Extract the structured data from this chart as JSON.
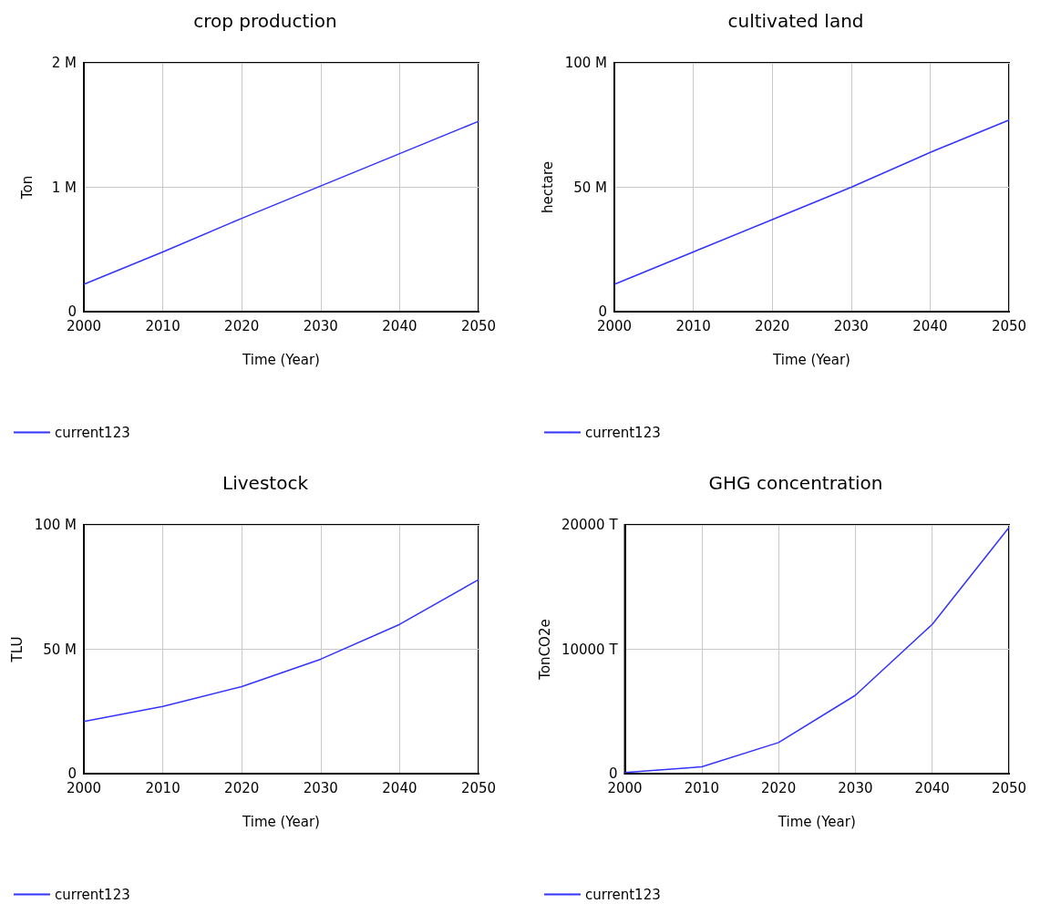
{
  "chart_data": [
    {
      "type": "line",
      "title": "crop production",
      "xlabel": "Time (Year)",
      "ylabel": "Ton",
      "x": [
        2000,
        2010,
        2020,
        2030,
        2040,
        2050
      ],
      "xlim": [
        2000,
        2050
      ],
      "xticks": [
        2000,
        2010,
        2020,
        2030,
        2040,
        2050
      ],
      "ylim": [
        0,
        2000000
      ],
      "yticks": [
        {
          "value": 0,
          "label": "0"
        },
        {
          "value": 1000000,
          "label": "1 M"
        },
        {
          "value": 2000000,
          "label": "2 M"
        }
      ],
      "grid": true,
      "legend": "bottom left",
      "marker": "none",
      "series": [
        {
          "name": "current123",
          "color": "#3333ff",
          "values": [
            220000,
            480000,
            750000,
            1010000,
            1270000,
            1530000
          ]
        }
      ]
    },
    {
      "type": "line",
      "title": "cultivated land",
      "xlabel": "Time (Year)",
      "ylabel": "hectare",
      "x": [
        2000,
        2010,
        2020,
        2030,
        2040,
        2050
      ],
      "xlim": [
        2000,
        2050
      ],
      "xticks": [
        2000,
        2010,
        2020,
        2030,
        2040,
        2050
      ],
      "ylim": [
        0,
        100000000
      ],
      "yticks": [
        {
          "value": 0,
          "label": "0"
        },
        {
          "value": 50000000,
          "label": "50 M"
        },
        {
          "value": 100000000,
          "label": "100 M"
        }
      ],
      "grid": true,
      "legend": "bottom left",
      "marker": "none",
      "series": [
        {
          "name": "current123",
          "color": "#3333ff",
          "values": [
            11000000,
            24000000,
            37000000,
            50000000,
            64000000,
            77000000
          ]
        }
      ]
    },
    {
      "type": "line",
      "title": "Livestock",
      "xlabel": "Time (Year)",
      "ylabel": "TLU",
      "x": [
        2000,
        2010,
        2020,
        2030,
        2040,
        2050
      ],
      "xlim": [
        2000,
        2050
      ],
      "xticks": [
        2000,
        2010,
        2020,
        2030,
        2040,
        2050
      ],
      "ylim": [
        0,
        100000000
      ],
      "yticks": [
        {
          "value": 0,
          "label": "0"
        },
        {
          "value": 50000000,
          "label": "50 M"
        },
        {
          "value": 100000000,
          "label": "100 M"
        }
      ],
      "grid": true,
      "legend": "bottom left",
      "marker": "none",
      "series": [
        {
          "name": "current123",
          "color": "#3333ff",
          "values": [
            21000000,
            27000000,
            35000000,
            46000000,
            60000000,
            78000000
          ]
        }
      ]
    },
    {
      "type": "line",
      "title": "GHG concentration",
      "xlabel": "Time (Year)",
      "ylabel": "TonCO2e",
      "x": [
        2000,
        2010,
        2020,
        2030,
        2040,
        2050
      ],
      "xlim": [
        2000,
        2050
      ],
      "xticks": [
        2000,
        2010,
        2020,
        2030,
        2040,
        2050
      ],
      "ylim": [
        0,
        20000
      ],
      "yticks": [
        {
          "value": 0,
          "label": "0"
        },
        {
          "value": 10000,
          "label": "10000 T"
        },
        {
          "value": 20000,
          "label": "20000 T"
        }
      ],
      "grid": true,
      "legend": "bottom left",
      "marker": "none",
      "series": [
        {
          "name": "current123",
          "color": "#3333ff",
          "values": [
            100,
            550,
            2500,
            6300,
            12000,
            19800
          ]
        }
      ]
    }
  ]
}
